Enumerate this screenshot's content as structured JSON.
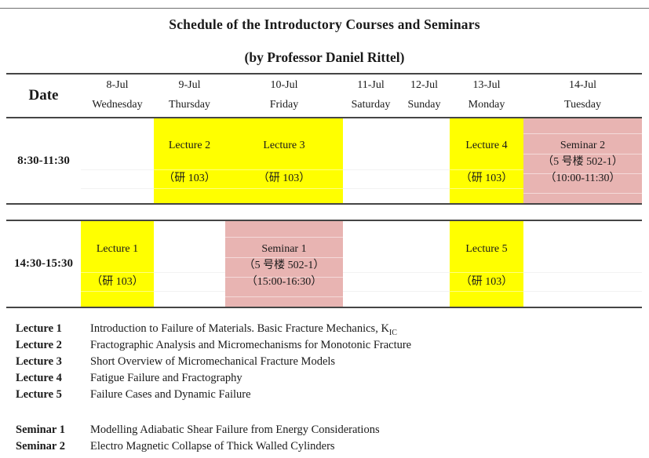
{
  "document": {
    "title": "Schedule of the Introductory Courses and Seminars",
    "subtitle": "(by Professor Daniel Rittel)"
  },
  "colors": {
    "lecture_bg": "#FFFF00",
    "seminar_bg": "#E8B4B2",
    "border": "#454545"
  },
  "schedule": {
    "date_header": "Date",
    "days": [
      {
        "date": "8-Jul",
        "day": "Wednesday"
      },
      {
        "date": "9-Jul",
        "day": "Thursday"
      },
      {
        "date": "10-Jul",
        "day": "Friday"
      },
      {
        "date": "11-Jul",
        "day": "Saturday"
      },
      {
        "date": "12-Jul",
        "day": "Sunday"
      },
      {
        "date": "13-Jul",
        "day": "Monday"
      },
      {
        "date": "14-Jul",
        "day": "Tuesday"
      }
    ],
    "rows": [
      {
        "time": "8:30-11:30",
        "cells": [
          {
            "type": "empty"
          },
          {
            "type": "lecture",
            "title": "Lecture 2",
            "location": "（研 103）"
          },
          {
            "type": "lecture",
            "title": "Lecture 3",
            "location": "（研 103）"
          },
          {
            "type": "empty"
          },
          {
            "type": "empty"
          },
          {
            "type": "lecture",
            "title": "Lecture 4",
            "location": "（研 103）"
          },
          {
            "type": "seminar",
            "title": "Seminar 2",
            "location": "（5 号楼 502-1）",
            "time": "（10:00-11:30）"
          }
        ]
      },
      {
        "time": "14:30-15:30",
        "cells": [
          {
            "type": "lecture",
            "title": "Lecture 1",
            "location": "（研 103）"
          },
          {
            "type": "empty"
          },
          {
            "type": "seminar",
            "title": "Seminar 1",
            "location": "（5 号楼 502-1）",
            "time": "（15:00-16:30）"
          },
          {
            "type": "empty"
          },
          {
            "type": "empty"
          },
          {
            "type": "lecture",
            "title": "Lecture 5",
            "location": "（研 103）"
          },
          {
            "type": "empty"
          }
        ]
      }
    ]
  },
  "legend": {
    "lectures": [
      {
        "label": "Lecture 1",
        "desc": "Introduction to Failure of Materials. Basic Fracture Mechanics, K",
        "desc_subscript": "IC"
      },
      {
        "label": "Lecture 2",
        "desc": "Fractographic Analysis and Micromechanisms for Monotonic Fracture"
      },
      {
        "label": "Lecture 3",
        "desc": "Short Overview of Micromechanical Fracture Models"
      },
      {
        "label": "Lecture 4",
        "desc": "Fatigue Failure and Fractography"
      },
      {
        "label": "Lecture 5",
        "desc": "Failure Cases and Dynamic Failure"
      }
    ],
    "seminars": [
      {
        "label": "Seminar 1",
        "desc": "Modelling Adiabatic Shear Failure from Energy Considerations"
      },
      {
        "label": "Seminar 2",
        "desc": "Electro Magnetic Collapse of Thick Walled Cylinders"
      }
    ]
  }
}
